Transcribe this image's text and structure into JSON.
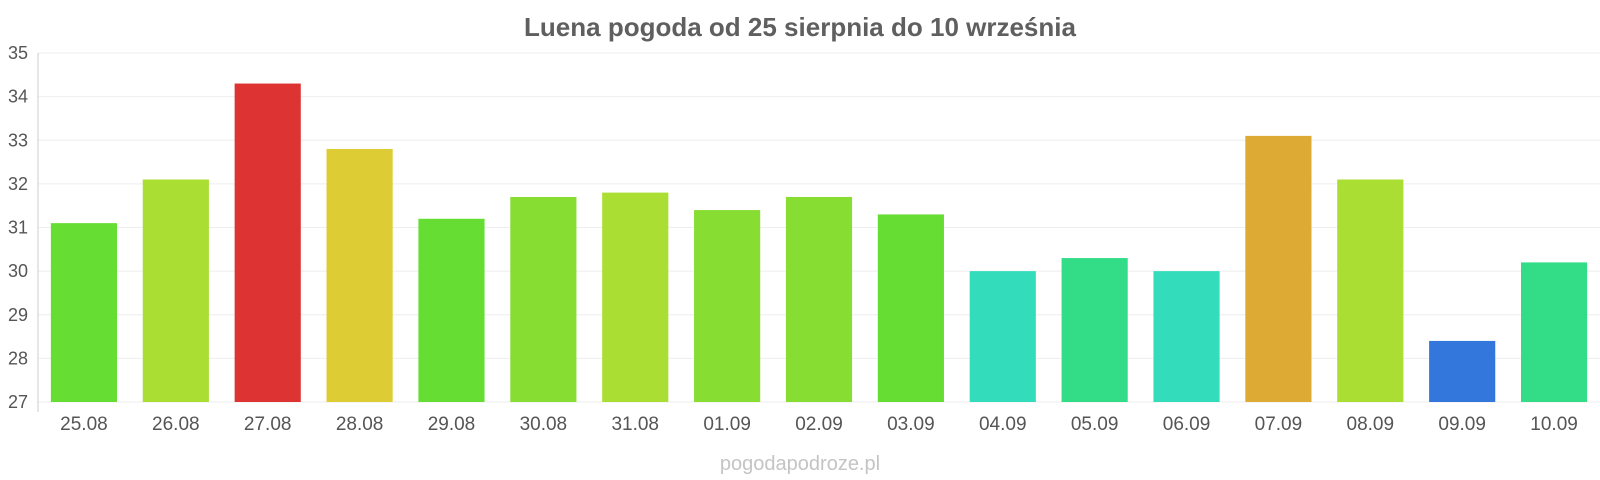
{
  "chart_data": {
    "type": "bar",
    "title": "Luena pogoda od 25 sierpnia do 10 września",
    "xlabel": "",
    "ylabel": "",
    "ylim": [
      27,
      35
    ],
    "yticks": [
      27,
      28,
      29,
      30,
      31,
      32,
      33,
      34,
      35
    ],
    "grid": true,
    "categories": [
      "25.08",
      "26.08",
      "27.08",
      "28.08",
      "29.08",
      "30.08",
      "31.08",
      "01.09",
      "02.09",
      "03.09",
      "04.09",
      "05.09",
      "06.09",
      "07.09",
      "08.09",
      "09.09",
      "10.09"
    ],
    "values": [
      31.1,
      32.1,
      34.3,
      32.8,
      31.2,
      31.7,
      31.8,
      31.4,
      31.7,
      31.3,
      30.0,
      30.3,
      30.0,
      33.1,
      32.1,
      28.4,
      30.2
    ],
    "colors": [
      "#66dd33",
      "#aade33",
      "#dd3333",
      "#ddcc33",
      "#66dd33",
      "#88dd33",
      "#aade33",
      "#88dd33",
      "#88dd33",
      "#66dd33",
      "#33ddbb",
      "#33dd88",
      "#33ddbb",
      "#ddaa33",
      "#aade33",
      "#3377dd",
      "#33dd88"
    ]
  },
  "watermark": "pogodapodroze.pl"
}
